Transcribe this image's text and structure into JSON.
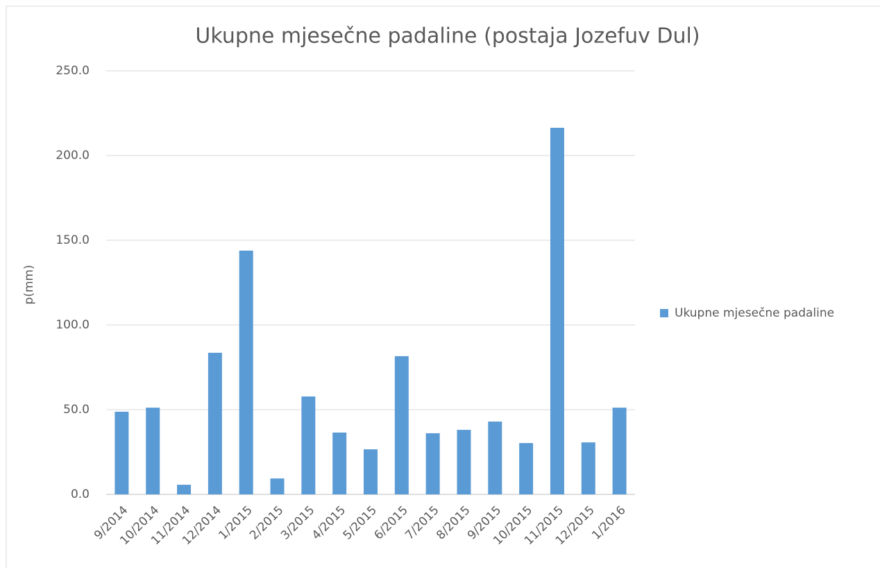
{
  "chart_data": {
    "type": "bar",
    "title": "Ukupne mjesečne padaline (postaja Jozefuv Dul)",
    "y_label": "p(mm)",
    "categories": [
      "9/2014",
      "10/2014",
      "11/2014",
      "12/2014",
      "1/2015",
      "2/2015",
      "3/2015",
      "4/2015",
      "5/2015",
      "6/2015",
      "7/2015",
      "8/2015",
      "9/2015",
      "10/2015",
      "11/2015",
      "12/2015",
      "1/2016"
    ],
    "series": [
      {
        "name": "Ukupne mjesečne padaline",
        "color": "#5b9bd5",
        "values": [
          48.8,
          51.2,
          5.7,
          83.6,
          143.9,
          9.4,
          57.8,
          36.5,
          26.6,
          81.6,
          36.1,
          38.1,
          43.0,
          30.3,
          216.4,
          30.7,
          51.2
        ]
      }
    ],
    "ylim": [
      0,
      250
    ],
    "yticks": [
      {
        "value": 0,
        "label": "0.0"
      },
      {
        "value": 50,
        "label": "50.0"
      },
      {
        "value": 100,
        "label": "100.0"
      },
      {
        "value": 150,
        "label": "150.0"
      },
      {
        "value": 200,
        "label": "200.0"
      },
      {
        "value": 250,
        "label": "250.0"
      }
    ],
    "grid": true,
    "legend": "right"
  }
}
